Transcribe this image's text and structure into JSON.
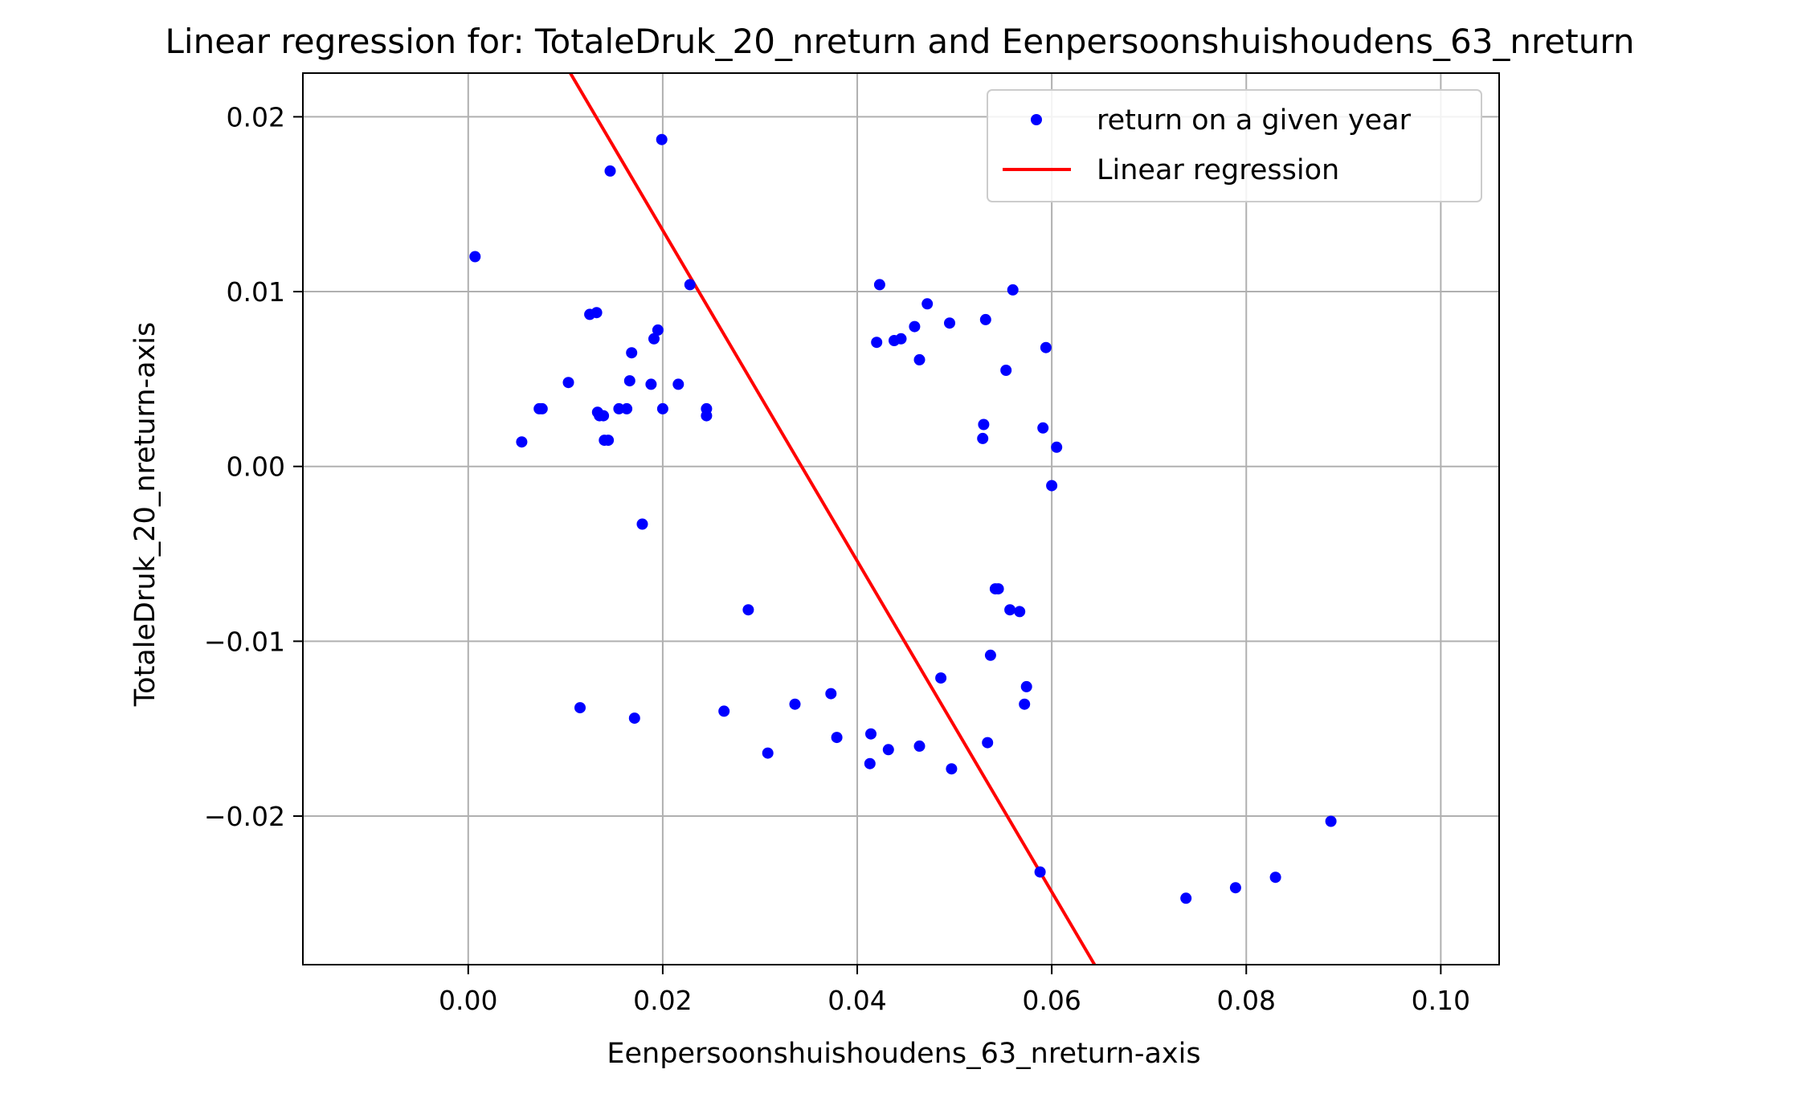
{
  "chart_data": {
    "type": "scatter",
    "title": "Linear regression for: TotaleDruk_20_nreturn and Eenpersoonshuishoudens_63_nreturn",
    "xlabel": "Eenpersoonshuishoudens_63_nreturn-axis",
    "ylabel": "TotaleDruk_20_nreturn-axis",
    "xlim": [
      -0.017,
      0.106
    ],
    "ylim": [
      -0.0285,
      0.0225
    ],
    "xticks": [
      0.0,
      0.02,
      0.04,
      0.06,
      0.08,
      0.1
    ],
    "xtick_labels": [
      "0.00",
      "0.02",
      "0.04",
      "0.06",
      "0.08",
      "0.10"
    ],
    "yticks": [
      -0.02,
      -0.01,
      0.0,
      0.01,
      0.02
    ],
    "ytick_labels": [
      "−0.02",
      "−0.01",
      "0.00",
      "0.01",
      "0.02"
    ],
    "grid": true,
    "legend_position": "top-right",
    "series": [
      {
        "name": "return on a given year",
        "kind": "scatter",
        "color": "#0000ff",
        "points": [
          [
            0.0007,
            0.012
          ],
          [
            0.0055,
            0.0014
          ],
          [
            0.0073,
            0.0033
          ],
          [
            0.0076,
            0.0033
          ],
          [
            0.0103,
            0.0048
          ],
          [
            0.0115,
            -0.0138
          ],
          [
            0.0125,
            0.0087
          ],
          [
            0.0132,
            0.0088
          ],
          [
            0.0133,
            0.0031
          ],
          [
            0.0135,
            0.0029
          ],
          [
            0.0139,
            0.0029
          ],
          [
            0.014,
            0.0015
          ],
          [
            0.0144,
            0.0015
          ],
          [
            0.0146,
            0.0169
          ],
          [
            0.0155,
            0.0033
          ],
          [
            0.0163,
            0.0033
          ],
          [
            0.0166,
            0.0049
          ],
          [
            0.0168,
            0.0065
          ],
          [
            0.0171,
            -0.0144
          ],
          [
            0.0179,
            -0.0033
          ],
          [
            0.0188,
            0.0047
          ],
          [
            0.0191,
            0.0073
          ],
          [
            0.0195,
            0.0078
          ],
          [
            0.0199,
            0.0187
          ],
          [
            0.02,
            0.0033
          ],
          [
            0.0216,
            0.0047
          ],
          [
            0.0228,
            0.0104
          ],
          [
            0.0245,
            0.0033
          ],
          [
            0.0245,
            0.0029
          ],
          [
            0.0263,
            -0.014
          ],
          [
            0.0288,
            -0.0082
          ],
          [
            0.0308,
            -0.0164
          ],
          [
            0.0336,
            -0.0136
          ],
          [
            0.0373,
            -0.013
          ],
          [
            0.0379,
            -0.0155
          ],
          [
            0.0413,
            -0.017
          ],
          [
            0.0414,
            -0.0153
          ],
          [
            0.042,
            0.0071
          ],
          [
            0.0423,
            0.0104
          ],
          [
            0.0432,
            -0.0162
          ],
          [
            0.0438,
            0.0072
          ],
          [
            0.0445,
            0.0073
          ],
          [
            0.0459,
            0.008
          ],
          [
            0.0464,
            0.0061
          ],
          [
            0.0464,
            -0.016
          ],
          [
            0.0472,
            0.0093
          ],
          [
            0.0486,
            -0.0121
          ],
          [
            0.0495,
            0.0082
          ],
          [
            0.0497,
            -0.0173
          ],
          [
            0.0529,
            0.0016
          ],
          [
            0.053,
            0.0024
          ],
          [
            0.0532,
            0.0084
          ],
          [
            0.0534,
            -0.0158
          ],
          [
            0.0537,
            -0.0108
          ],
          [
            0.0542,
            -0.007
          ],
          [
            0.0545,
            -0.007
          ],
          [
            0.0553,
            0.0055
          ],
          [
            0.0557,
            -0.0082
          ],
          [
            0.056,
            0.0101
          ],
          [
            0.0567,
            -0.0083
          ],
          [
            0.0572,
            -0.0136
          ],
          [
            0.0574,
            -0.0126
          ],
          [
            0.0588,
            -0.0232
          ],
          [
            0.0591,
            0.0022
          ],
          [
            0.0594,
            0.0068
          ],
          [
            0.06,
            -0.0011
          ],
          [
            0.0605,
            0.0011
          ],
          [
            0.0738,
            -0.0247
          ],
          [
            0.0789,
            -0.0241
          ],
          [
            0.083,
            -0.0235
          ],
          [
            0.0887,
            -0.0203
          ]
        ]
      },
      {
        "name": "Linear regression",
        "kind": "line",
        "color": "#ff0000",
        "points": [
          [
            0.0105,
            0.0225
          ],
          [
            0.0644,
            -0.0285
          ]
        ]
      }
    ]
  }
}
